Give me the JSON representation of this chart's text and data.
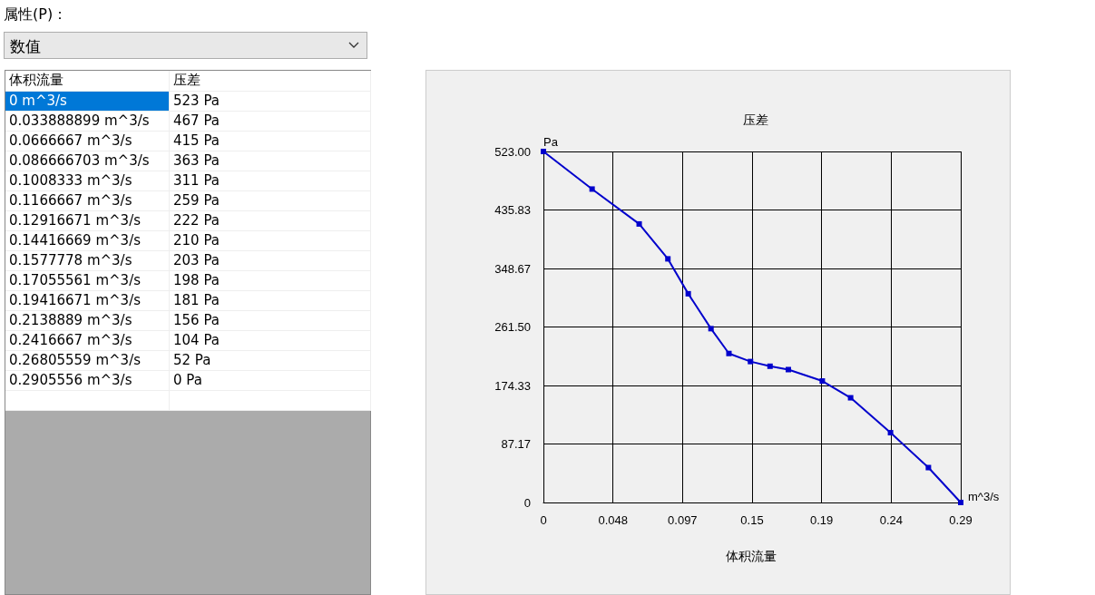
{
  "chart_data": {
    "type": "line",
    "title": "压差",
    "xlabel": "体积流量",
    "ylabel": "Pa",
    "annotations": [
      "属性(P)：",
      "数值",
      "m^3/s",
      "体积流量",
      "压差",
      "0 m^3/s",
      "523 Pa",
      "0.033888899 m^3/s",
      "467 Pa",
      "0.0666667 m^3/s",
      "415 Pa",
      "0.086666703 m^3/s",
      "363 Pa",
      "0.1008333 m^3/s",
      "311 Pa",
      "0.1166667 m^3/s",
      "259 Pa",
      "0.12916671 m^3/s",
      "222 Pa",
      "0.14416669 m^3/s",
      "210 Pa",
      "0.1577778 m^3/s",
      "203 Pa",
      "0.17055561 m^3/s",
      "198 Pa",
      "0.19416671 m^3/s",
      "181 Pa",
      "0.2138889 m^3/s",
      "156 Pa",
      "0.2416667 m^3/s",
      "104 Pa",
      "0.26805559 m^3/s",
      "52 Pa",
      "0.2905556 m^3/s",
      "0 Pa"
    ],
    "x": [
      0,
      0.033888899,
      0.0666667,
      0.086666703,
      0.1008333,
      0.1166667,
      0.12916671,
      0.14416669,
      0.1577778,
      0.17055561,
      0.19416671,
      0.2138889,
      0.2416667,
      0.26805559,
      0.2905556
    ],
    "series": [
      {
        "color": "#0000cc",
        "values": [
          523,
          467,
          415,
          363,
          311,
          259,
          222,
          210,
          203,
          198,
          181,
          156,
          104,
          52,
          0
        ]
      }
    ],
    "xlim": [
      0,
      0.2905556
    ],
    "xticks": [
      0,
      {
        "value": 0.0484259,
        "label": "0.048"
      },
      {
        "value": 0.0968519,
        "label": "0.097"
      },
      {
        "value": 0.1452778,
        "label": "0.15"
      },
      {
        "value": 0.1937037,
        "label": "0.19"
      },
      {
        "value": 0.2421296,
        "label": "0.24"
      },
      {
        "value": 0.2905556,
        "label": "0.29"
      }
    ],
    "ylim": [
      0,
      523
    ],
    "yticks": [
      0,
      {
        "value": 87.1667,
        "label": "87.17"
      },
      {
        "value": 174.3333,
        "label": "174.33"
      },
      {
        "value": 261.5,
        "label": "261.50"
      },
      {
        "value": 348.6667,
        "label": "348.67"
      },
      {
        "value": 435.8333,
        "label": "435.83"
      },
      {
        "value": 523,
        "label": "523.00"
      }
    ],
    "grid": true,
    "marker": "square",
    "line_style": "solid"
  }
}
